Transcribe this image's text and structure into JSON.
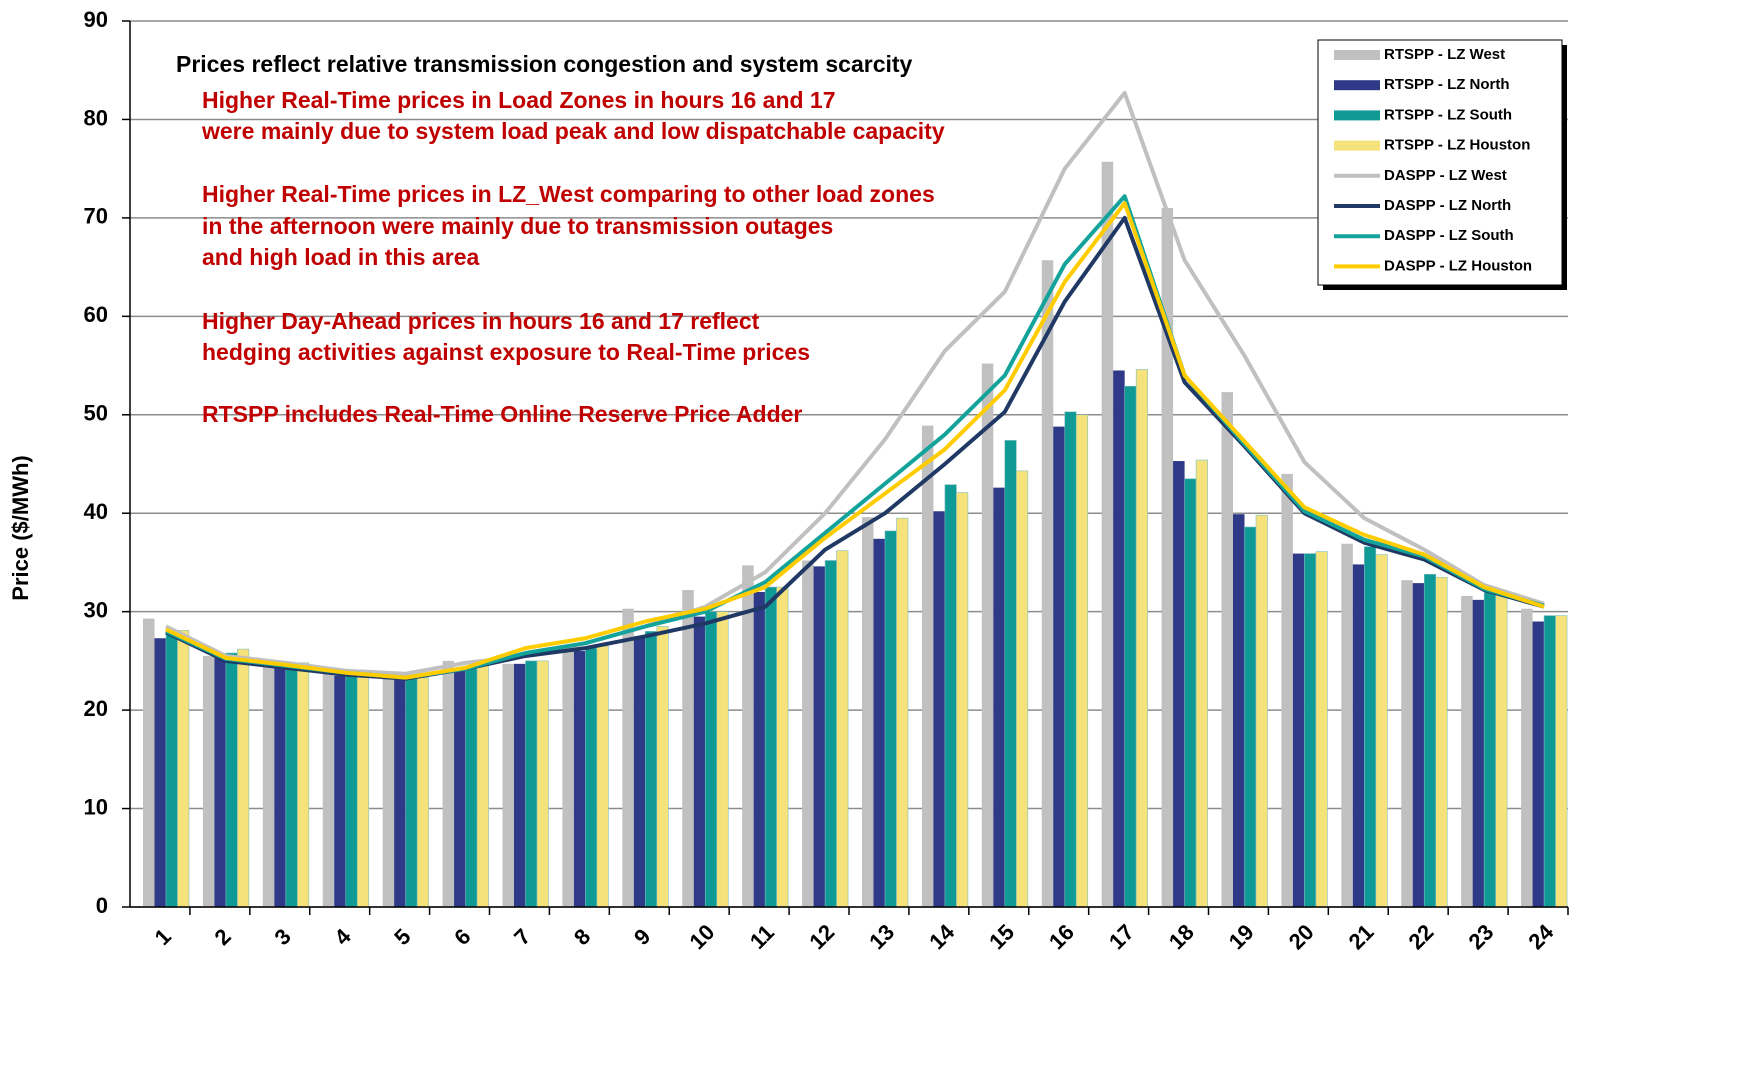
{
  "chart_data": {
    "type": "bar",
    "y_label": "Price ($/MWh)",
    "annotations": [
      {
        "text": [
          "Prices reflect relative transmission congestion and system scarcity"
        ],
        "color": "#000000"
      },
      {
        "text": [
          "Higher Real-Time prices in Load Zones in hours 16 and 17",
          "were mainly due to system load peak and low dispatchable capacity"
        ],
        "color": "#c00000"
      },
      {
        "text": [
          "Higher Real-Time prices in LZ_West comparing to other load zones",
          "in the afternoon were mainly due to transmission outages",
          "and high load in this area"
        ],
        "color": "#c00000"
      },
      {
        "text": [
          "Higher Day-Ahead prices in hours 16 and 17 reflect",
          "hedging activities against exposure to Real-Time prices"
        ],
        "color": "#c00000"
      },
      {
        "text": [
          "RTSPP includes Real-Time Online Reserve Price Adder"
        ],
        "color": "#c00000"
      }
    ],
    "categories": [
      "1",
      "2",
      "3",
      "4",
      "5",
      "6",
      "7",
      "8",
      "9",
      "10",
      "11",
      "12",
      "13",
      "14",
      "15",
      "16",
      "17",
      "18",
      "19",
      "20",
      "21",
      "22",
      "23",
      "24"
    ],
    "series": [
      {
        "name": "RTSPP - LZ West",
        "type": "bar",
        "color": "#c0c0c0",
        "values": [
          29.3,
          25.5,
          25.1,
          23.8,
          23.5,
          25.0,
          24.7,
          26.0,
          30.3,
          32.2,
          34.7,
          35.2,
          39.6,
          48.9,
          55.2,
          65.7,
          75.7,
          71.0,
          52.3,
          44.0,
          36.9,
          33.2,
          31.6,
          30.3
        ]
      },
      {
        "name": "RTSPP - LZ North",
        "type": "bar",
        "color": "#2e3a87",
        "values": [
          27.3,
          25.3,
          24.5,
          23.5,
          23.2,
          24.0,
          24.7,
          26.0,
          27.5,
          29.5,
          32.0,
          34.6,
          37.4,
          40.2,
          42.6,
          48.8,
          54.5,
          45.3,
          39.9,
          35.9,
          34.8,
          32.9,
          31.2,
          29.0
        ]
      },
      {
        "name": "RTSPP - LZ South",
        "type": "bar",
        "color": "#0f9a96",
        "values": [
          28.0,
          25.8,
          24.7,
          23.6,
          23.3,
          24.5,
          25.0,
          26.3,
          28.0,
          30.0,
          32.5,
          35.2,
          38.2,
          42.9,
          47.4,
          50.3,
          52.9,
          43.5,
          38.6,
          35.9,
          36.6,
          33.8,
          32.0,
          29.6
        ]
      },
      {
        "name": "RTSPP - LZ Houston",
        "type": "bar",
        "color": "#f5e27a",
        "values": [
          28.1,
          26.2,
          24.8,
          23.5,
          23.3,
          24.5,
          25.0,
          26.5,
          28.5,
          30.0,
          32.5,
          36.2,
          39.5,
          42.1,
          44.3,
          50.0,
          54.6,
          45.4,
          39.8,
          36.1,
          35.8,
          33.5,
          31.7,
          29.6
        ]
      },
      {
        "name": "DASPP - LZ West",
        "type": "line",
        "color": "#c0c0c0",
        "values": [
          28.5,
          25.5,
          24.8,
          24.0,
          23.7,
          24.8,
          25.5,
          26.8,
          28.5,
          30.5,
          34.0,
          40.0,
          47.5,
          56.5,
          62.5,
          75.0,
          82.7,
          65.7,
          56.0,
          45.2,
          39.5,
          36.3,
          32.7,
          30.8
        ]
      },
      {
        "name": "DASPP - LZ North",
        "type": "line",
        "color": "#1f3864",
        "values": [
          27.9,
          25.0,
          24.3,
          23.6,
          23.2,
          24.2,
          25.5,
          26.3,
          27.5,
          28.8,
          30.5,
          36.3,
          40.0,
          45.0,
          50.3,
          61.5,
          70.0,
          53.3,
          46.8,
          40.0,
          37.0,
          35.3,
          32.2,
          30.5
        ]
      },
      {
        "name": "DASPP - LZ South",
        "type": "line",
        "color": "#13a39b",
        "values": [
          28.0,
          25.2,
          24.5,
          23.8,
          23.3,
          24.2,
          25.8,
          26.8,
          28.5,
          30.0,
          33.0,
          38.0,
          43.0,
          48.0,
          54.0,
          65.3,
          72.2,
          54.0,
          47.0,
          40.2,
          37.3,
          35.6,
          32.3,
          30.6
        ]
      },
      {
        "name": "DASPP - LZ Houston",
        "type": "line",
        "color": "#ffcc00",
        "values": [
          28.2,
          25.3,
          24.6,
          23.8,
          23.3,
          24.3,
          26.3,
          27.3,
          29.0,
          30.3,
          32.5,
          37.5,
          42.0,
          46.5,
          52.5,
          63.5,
          71.5,
          54.0,
          47.3,
          40.6,
          37.8,
          35.8,
          32.5,
          30.5
        ]
      }
    ],
    "ylim": [
      0,
      90
    ],
    "yticks": [
      0,
      10,
      20,
      30,
      40,
      50,
      60,
      70,
      80,
      90
    ],
    "grid": true,
    "legend": "top-right"
  }
}
